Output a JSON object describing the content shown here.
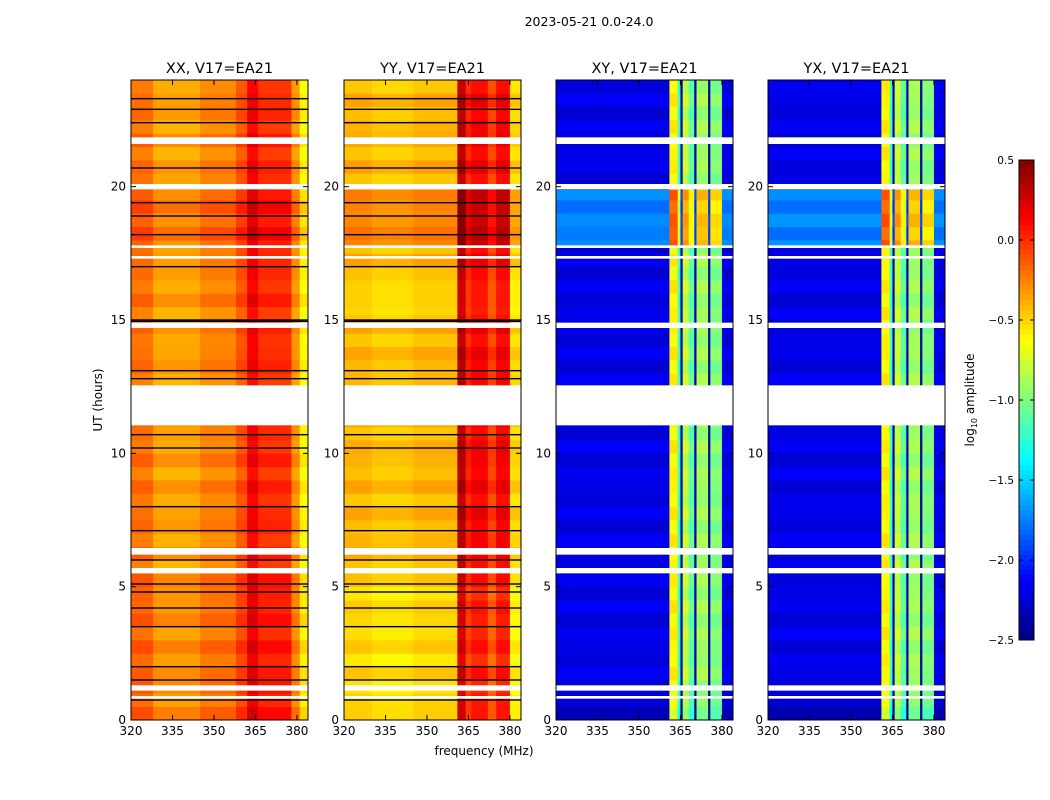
{
  "chart_data": {
    "type": "heatmap",
    "suptitle": "2023-05-21 0.0-24.0",
    "xlabel": "frequency (MHz)",
    "ylabel": "UT (hours)",
    "xlim": [
      320,
      384
    ],
    "ylim": [
      0,
      24
    ],
    "xticks": [
      320,
      335,
      350,
      365,
      380
    ],
    "yticks": [
      0,
      5,
      10,
      15,
      20
    ],
    "colorbar": {
      "label_main": "log",
      "label_sub": "10",
      "label_rest": " amplitude",
      "range": [
        -2.5,
        0.5
      ],
      "ticks": [
        "0.5",
        "0.0",
        "−0.5",
        "−1.0",
        "−1.5",
        "−2.0",
        "−2.5"
      ],
      "tick_values": [
        0.5,
        0.0,
        -0.5,
        -1.0,
        -1.5,
        -2.0,
        -2.5
      ],
      "colormap": "jet"
    },
    "flagged_gaps_hours": [
      [
        21.6,
        21.85
      ],
      [
        19.9,
        20.1
      ],
      [
        17.7,
        17.8
      ],
      [
        17.3,
        17.4
      ],
      [
        14.7,
        14.9
      ],
      [
        11.05,
        12.55
      ],
      [
        6.2,
        6.45
      ],
      [
        5.5,
        5.7
      ],
      [
        1.1,
        1.3
      ],
      [
        0.8,
        0.9
      ]
    ],
    "panels": [
      {
        "title": "XX, V17=EA21",
        "freq_profile": [
          [
            320,
            328,
            -0.2
          ],
          [
            328,
            345,
            -0.35
          ],
          [
            345,
            358,
            -0.25
          ],
          [
            358,
            362,
            -0.1
          ],
          [
            362,
            366,
            0.15
          ],
          [
            366,
            378,
            0.0
          ],
          [
            378,
            381,
            -0.3
          ],
          [
            381,
            384,
            -0.6
          ]
        ],
        "time_offsets": [
          [
            17.8,
            19.9,
            0.1
          ],
          [
            0,
            5.5,
            0.05
          ]
        ],
        "dark_lines": [
          23.3,
          22.9,
          22.4,
          20.7,
          19.4,
          18.9,
          18.2,
          17.0,
          15.0,
          14.95,
          13.1,
          12.8,
          10.7,
          10.2,
          8.0,
          7.1,
          6.0,
          5.1,
          4.8,
          4.2,
          3.5,
          2.0,
          1.5,
          0.75
        ]
      },
      {
        "title": "YY, V17=EA21",
        "freq_profile": [
          [
            320,
            330,
            -0.4
          ],
          [
            330,
            345,
            -0.45
          ],
          [
            345,
            361,
            -0.4
          ],
          [
            361,
            364,
            0.35
          ],
          [
            364,
            366,
            0.05
          ],
          [
            366,
            372,
            0.15
          ],
          [
            372,
            375,
            -0.05
          ],
          [
            375,
            380,
            0.15
          ],
          [
            380,
            384,
            -0.5
          ]
        ],
        "time_offsets": [
          [
            17.8,
            19.9,
            0.15
          ],
          [
            15.2,
            16.5,
            -0.1
          ],
          [
            0,
            5.5,
            -0.1
          ]
        ],
        "dark_lines": [
          23.3,
          22.9,
          22.4,
          20.7,
          19.4,
          18.9,
          18.2,
          17.0,
          15.0,
          14.95,
          13.1,
          12.8,
          10.7,
          10.2,
          8.0,
          7.1,
          6.0,
          5.1,
          4.8,
          4.2,
          3.5,
          2.0,
          1.5,
          0.75
        ]
      },
      {
        "title": "XY, V17=EA21",
        "freq_profile": [
          [
            320,
            361,
            -2.2
          ],
          [
            361,
            364,
            -0.6
          ],
          [
            364,
            365,
            -1.2
          ],
          [
            365,
            365.8,
            -2.4
          ],
          [
            365.8,
            368,
            -0.8
          ],
          [
            368,
            370,
            -1.1
          ],
          [
            370,
            370.8,
            -2.4
          ],
          [
            370.8,
            375,
            -0.9
          ],
          [
            375,
            375.8,
            -2.4
          ],
          [
            375.8,
            380,
            -1.0
          ],
          [
            380,
            384,
            -2.2
          ]
        ],
        "time_offsets": [
          [
            17.8,
            19.9,
            0.45
          ],
          [
            0,
            1.0,
            -0.1
          ]
        ],
        "dark_lines": []
      },
      {
        "title": "YX, V17=EA21",
        "freq_profile": [
          [
            320,
            361,
            -2.2
          ],
          [
            361,
            364,
            -0.6
          ],
          [
            364,
            365,
            -1.2
          ],
          [
            365,
            365.8,
            -2.4
          ],
          [
            365.8,
            368,
            -0.8
          ],
          [
            368,
            370,
            -1.1
          ],
          [
            370,
            370.8,
            -2.4
          ],
          [
            370.8,
            375,
            -0.9
          ],
          [
            375,
            375.8,
            -2.4
          ],
          [
            375.8,
            380,
            -1.0
          ],
          [
            380,
            384,
            -2.2
          ]
        ],
        "time_offsets": [
          [
            17.8,
            19.9,
            0.45
          ],
          [
            0,
            1.0,
            -0.1
          ]
        ],
        "dark_lines": []
      }
    ]
  }
}
